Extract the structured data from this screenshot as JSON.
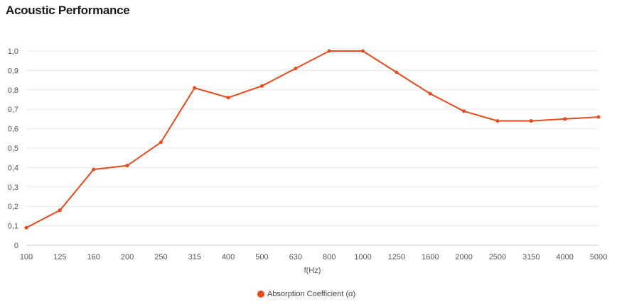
{
  "header": {
    "title": "Acoustic Performance"
  },
  "chart_data": {
    "type": "line",
    "categories": [
      "100",
      "125",
      "160",
      "200",
      "250",
      "315",
      "400",
      "500",
      "630",
      "800",
      "1000",
      "1250",
      "1600",
      "2000",
      "2500",
      "3150",
      "4000",
      "5000"
    ],
    "series": [
      {
        "name": "Absorption Coefficient (α)",
        "values": [
          0.09,
          0.18,
          0.39,
          0.41,
          0.53,
          0.81,
          0.76,
          0.82,
          0.91,
          1.0,
          1.0,
          0.89,
          0.78,
          0.69,
          0.64,
          0.64,
          0.65,
          0.66
        ],
        "color": "#e84a1a"
      }
    ],
    "title": "Acoustic Performance",
    "xlabel": "f(Hz)",
    "ylabel": "",
    "ylim": [
      0,
      1.0
    ],
    "yticks": [
      "0",
      "0,1",
      "0,2",
      "0,3",
      "0,4",
      "0,5",
      "0,6",
      "0,7",
      "0,8",
      "0,9",
      "1,0"
    ],
    "grid": true,
    "legend_position": "bottom-center"
  }
}
